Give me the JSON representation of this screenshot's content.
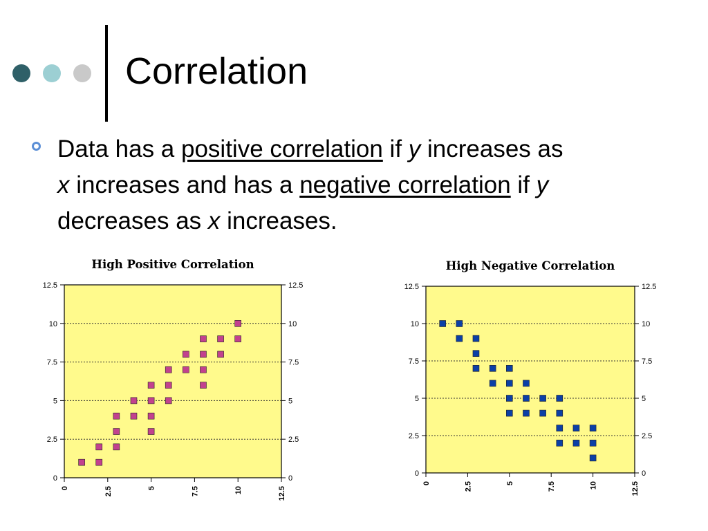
{
  "slide": {
    "title": "Correlation",
    "bullet": {
      "t1": "Data has a ",
      "positive": "positive correlation",
      "t2": " if ",
      "y1": "y",
      "t3": " increases as ",
      "x1": "x",
      "t4": " increases and has a ",
      "negative": "negative correlation",
      "t5": " if ",
      "y2": "y",
      "t6": " decreases as ",
      "x2": "x",
      "t7": " increases."
    }
  },
  "colors": {
    "dot1": "#2f6068",
    "dot2": "#9ccfd3",
    "dot3": "#c9c9c9",
    "bullet": "#5c8fd6",
    "plot_background": "#fffa8c",
    "positive_marker": "#c2418e",
    "negative_marker": "#0b3fa6"
  },
  "chart_data": [
    {
      "type": "scatter",
      "title": "High Positive Correlation",
      "xlim": [
        0,
        12.5
      ],
      "ylim": [
        0,
        12.5
      ],
      "x_ticks": [
        "0",
        "2.5",
        "5",
        "7.5",
        "10",
        "12.5"
      ],
      "y_ticks": [
        "0",
        "2.5",
        "5",
        "7.5",
        "10",
        "12.5"
      ],
      "gridlines": "horizontal dotted",
      "marker": "square",
      "points": [
        [
          1,
          1
        ],
        [
          2,
          1
        ],
        [
          2,
          2
        ],
        [
          3,
          2
        ],
        [
          3,
          3
        ],
        [
          3,
          4
        ],
        [
          4,
          4
        ],
        [
          4,
          5
        ],
        [
          5,
          3
        ],
        [
          5,
          4
        ],
        [
          5,
          5
        ],
        [
          5,
          6
        ],
        [
          6,
          5
        ],
        [
          6,
          6
        ],
        [
          6,
          7
        ],
        [
          7,
          7
        ],
        [
          7,
          8
        ],
        [
          8,
          6
        ],
        [
          8,
          7
        ],
        [
          8,
          8
        ],
        [
          8,
          9
        ],
        [
          9,
          8
        ],
        [
          9,
          9
        ],
        [
          10,
          9
        ],
        [
          10,
          10
        ]
      ]
    },
    {
      "type": "scatter",
      "title": "High Negative Correlation",
      "xlim": [
        0,
        12.5
      ],
      "ylim": [
        0,
        12.5
      ],
      "x_ticks": [
        "0",
        "2.5",
        "5",
        "7.5",
        "10",
        "12.5"
      ],
      "y_ticks": [
        "0",
        "2.5",
        "5",
        "7.5",
        "10",
        "12.5"
      ],
      "gridlines": "horizontal dotted",
      "marker": "square",
      "points": [
        [
          1,
          10
        ],
        [
          2,
          10
        ],
        [
          2,
          9
        ],
        [
          3,
          9
        ],
        [
          3,
          8
        ],
        [
          3,
          7
        ],
        [
          4,
          7
        ],
        [
          4,
          6
        ],
        [
          5,
          7
        ],
        [
          5,
          6
        ],
        [
          5,
          5
        ],
        [
          5,
          4
        ],
        [
          6,
          6
        ],
        [
          6,
          5
        ],
        [
          6,
          4
        ],
        [
          7,
          5
        ],
        [
          7,
          4
        ],
        [
          8,
          5
        ],
        [
          8,
          4
        ],
        [
          8,
          3
        ],
        [
          8,
          2
        ],
        [
          9,
          3
        ],
        [
          9,
          2
        ],
        [
          10,
          3
        ],
        [
          10,
          2
        ],
        [
          10,
          1
        ]
      ]
    }
  ]
}
